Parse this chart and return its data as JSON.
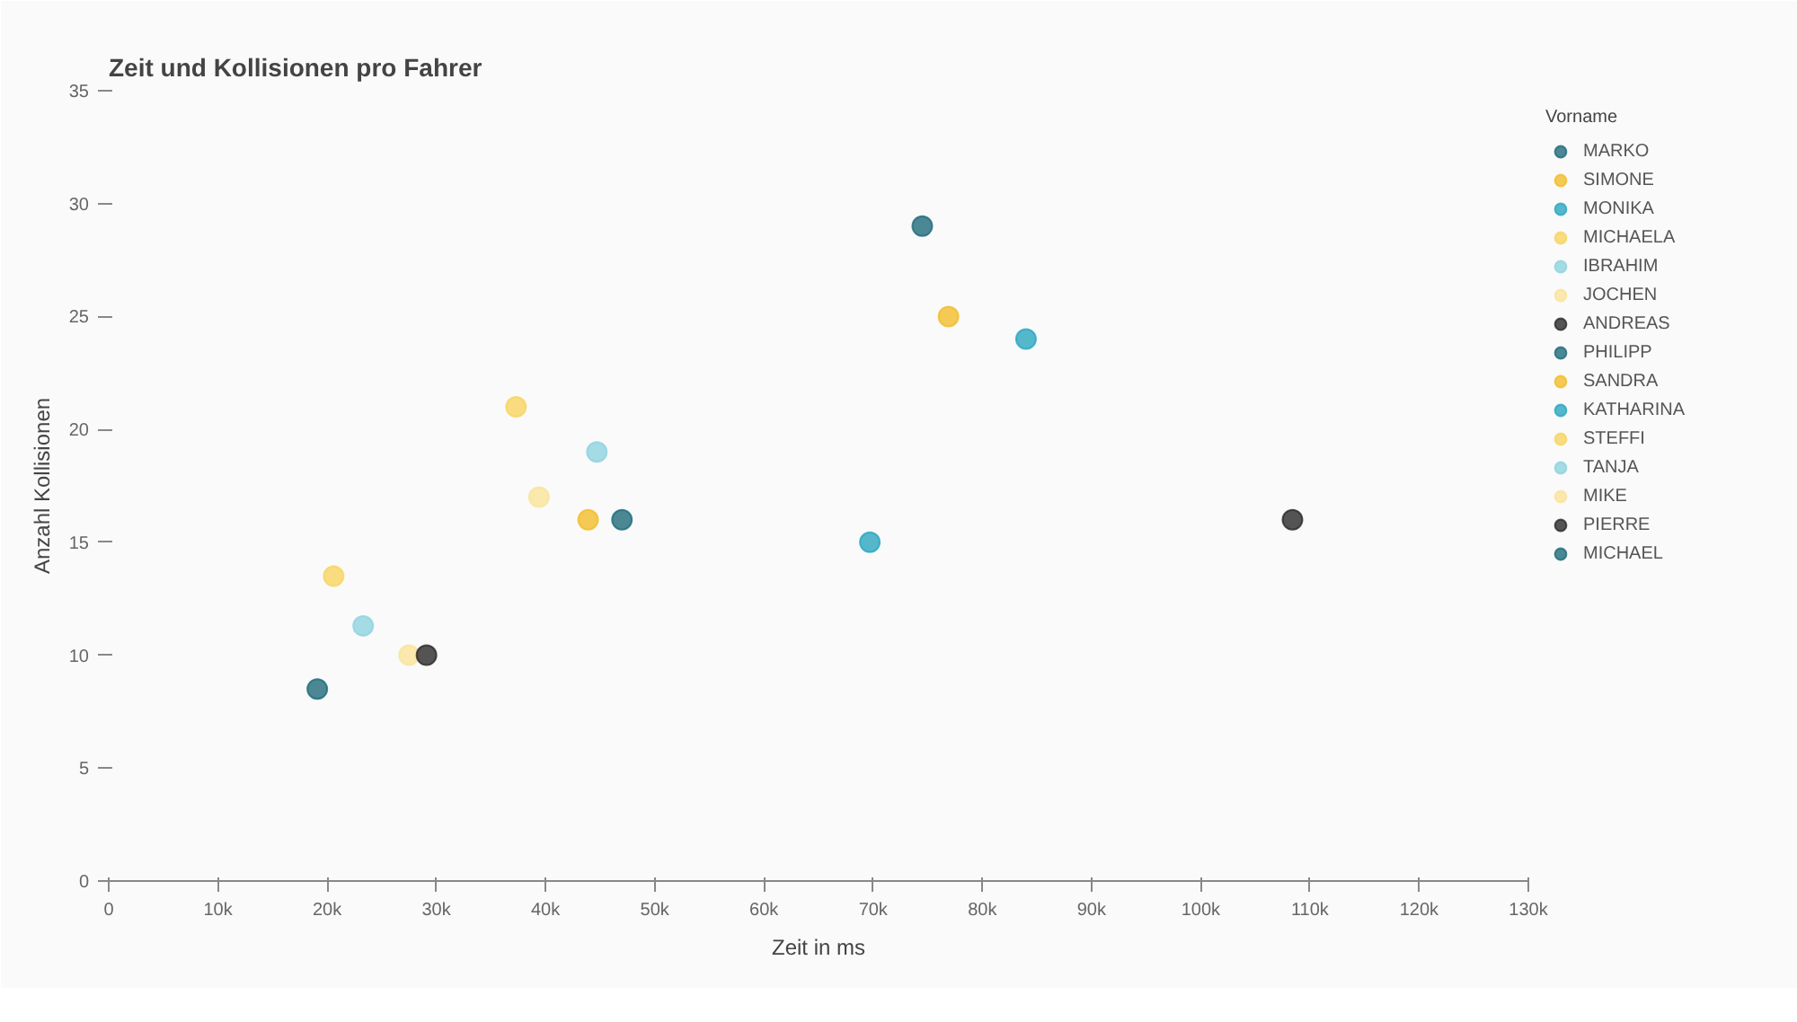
{
  "chart_data": {
    "type": "scatter",
    "title": "Zeit und Kollisionen pro Fahrer",
    "xlabel": "Zeit in ms",
    "ylabel": "Anzahl Kollisionen",
    "legend_title": "Vorname",
    "legend": "right",
    "marker": "circle",
    "grid": false,
    "xlim": [
      0,
      130000
    ],
    "xticks": [
      0,
      {
        "value": 10000,
        "label": "10k"
      },
      {
        "value": 20000,
        "label": "20k"
      },
      {
        "value": 30000,
        "label": "30k"
      },
      {
        "value": 40000,
        "label": "40k"
      },
      {
        "value": 50000,
        "label": "50k"
      },
      {
        "value": 60000,
        "label": "60k"
      },
      {
        "value": 70000,
        "label": "70k"
      },
      {
        "value": 80000,
        "label": "80k"
      },
      {
        "value": 90000,
        "label": "90k"
      },
      {
        "value": 100000,
        "label": "100k"
      },
      {
        "value": 110000,
        "label": "110k"
      },
      {
        "value": 120000,
        "label": "120k"
      },
      {
        "value": 130000,
        "label": "130k"
      }
    ],
    "ylim": [
      0,
      35
    ],
    "yticks": [
      0,
      5,
      10,
      15,
      20,
      25,
      30,
      35
    ],
    "series": [
      {
        "name": "MARKO",
        "color": "#1f6b7a",
        "x": [
          19100
        ],
        "values": [
          8.5
        ]
      },
      {
        "name": "SIMONE",
        "color": "#f2bd2a",
        "x": [
          43900
        ],
        "values": [
          16
        ]
      },
      {
        "name": "MONIKA",
        "color": "#2ba6c0",
        "x": [
          69700
        ],
        "values": [
          15
        ]
      },
      {
        "name": "MICHAELA",
        "color": "#f7d460",
        "x": [
          20600
        ],
        "values": [
          13.5
        ]
      },
      {
        "name": "IBRAHIM",
        "color": "#8ed3e0",
        "x": [
          23300
        ],
        "values": [
          11.3
        ]
      },
      {
        "name": "JOCHEN",
        "color": "#fae39a",
        "x": [
          27500
        ],
        "values": [
          10
        ]
      },
      {
        "name": "ANDREAS",
        "color": "#2a2a2a",
        "x": [
          29100
        ],
        "values": [
          10
        ]
      },
      {
        "name": "PHILIPP",
        "color": "#1f6b7a",
        "x": [
          47000
        ],
        "values": [
          16
        ]
      },
      {
        "name": "SANDRA",
        "color": "#f2bd2a",
        "x": [
          76900
        ],
        "values": [
          25
        ]
      },
      {
        "name": "KATHARINA",
        "color": "#2ba6c0",
        "x": [
          84000
        ],
        "values": [
          24
        ]
      },
      {
        "name": "STEFFI",
        "color": "#f7d460",
        "x": [
          37300
        ],
        "values": [
          21
        ]
      },
      {
        "name": "TANJA",
        "color": "#8ed3e0",
        "x": [
          44700
        ],
        "values": [
          19
        ]
      },
      {
        "name": "MIKE",
        "color": "#fae39a",
        "x": [
          39400
        ],
        "values": [
          17
        ]
      },
      {
        "name": "PIERRE",
        "color": "#2a2a2a",
        "x": [
          108400
        ],
        "values": [
          16
        ]
      },
      {
        "name": "MICHAEL",
        "color": "#1f6b7a",
        "x": [
          74500
        ],
        "values": [
          29
        ]
      }
    ]
  }
}
